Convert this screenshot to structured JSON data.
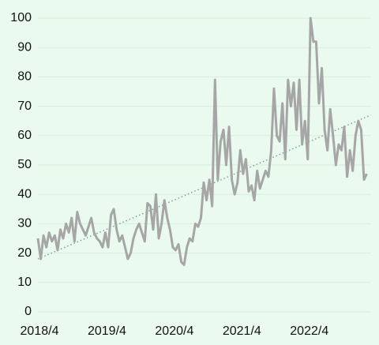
{
  "chart_data": {
    "type": "line",
    "categories": [
      "2018/4",
      null,
      null,
      null,
      null,
      null,
      null,
      null,
      null,
      null,
      null,
      null,
      null,
      null,
      null,
      null,
      null,
      null,
      null,
      null,
      null,
      null,
      null,
      null,
      "2019/4",
      null,
      null,
      null,
      null,
      null,
      null,
      null,
      null,
      null,
      null,
      null,
      null,
      null,
      null,
      null,
      null,
      null,
      null,
      null,
      null,
      null,
      null,
      null,
      "2020/4",
      null,
      null,
      null,
      null,
      null,
      null,
      null,
      null,
      null,
      null,
      null,
      null,
      null,
      null,
      null,
      null,
      null,
      null,
      null,
      null,
      null,
      null,
      null,
      "2021/4",
      null,
      null,
      null,
      null,
      null,
      null,
      null,
      null,
      null,
      null,
      null,
      null,
      null,
      null,
      null,
      null,
      null,
      null,
      null,
      null,
      null,
      null,
      null,
      "2022/4",
      null,
      null,
      null,
      null,
      null,
      null,
      null,
      null,
      null,
      null,
      null,
      null,
      null,
      null,
      null,
      null,
      null,
      null,
      null,
      null,
      null
    ],
    "values": [
      25,
      18,
      26,
      22,
      27,
      24,
      26,
      21,
      28,
      25,
      30,
      27,
      32,
      24,
      34,
      30,
      28,
      26,
      29,
      32,
      27,
      25,
      24,
      22,
      27,
      22,
      33,
      35,
      28,
      24,
      26,
      22,
      18,
      20,
      25,
      28,
      30,
      27,
      24,
      37,
      36,
      28,
      40,
      25,
      30,
      38,
      32,
      28,
      22,
      21,
      23,
      17,
      16,
      22,
      25,
      24,
      30,
      29,
      32,
      44,
      38,
      45,
      36,
      79,
      45,
      58,
      62,
      50,
      63,
      45,
      40,
      44,
      55,
      47,
      52,
      41,
      43,
      38,
      48,
      42,
      45,
      48,
      46,
      55,
      76,
      60,
      58,
      71,
      52,
      79,
      70,
      78,
      62,
      79,
      57,
      65,
      52,
      100,
      92,
      92,
      71,
      83,
      62,
      55,
      69,
      60,
      50,
      57,
      55,
      63,
      46,
      55,
      48,
      60,
      65,
      62,
      45,
      47
    ],
    "color": "#a6a6a6",
    "trendline": {
      "start": 18,
      "end": 67,
      "color": "#7f9f9f"
    },
    "ylim": [
      0,
      100
    ],
    "yticks": [
      0,
      10,
      20,
      30,
      40,
      50,
      60,
      70,
      80,
      90,
      100
    ],
    "grid": true
  }
}
